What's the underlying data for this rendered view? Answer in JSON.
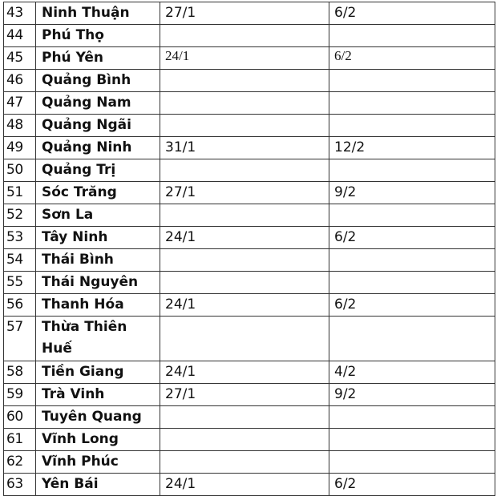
{
  "rows": [
    {
      "no": "43",
      "province": "Ninh Thuận",
      "date1": "27/1",
      "date2": "6/2"
    },
    {
      "no": "44",
      "province": "Phú Thọ",
      "date1": "",
      "date2": ""
    },
    {
      "no": "45",
      "province": "Phú Yên",
      "date1": "24/1",
      "date2": "6/2",
      "serif": true
    },
    {
      "no": "46",
      "province": "Quảng Bình",
      "date1": "",
      "date2": ""
    },
    {
      "no": "47",
      "province": "Quảng Nam",
      "date1": "",
      "date2": ""
    },
    {
      "no": "48",
      "province": "Quảng Ngãi",
      "date1": "",
      "date2": ""
    },
    {
      "no": "49",
      "province": "Quảng Ninh",
      "date1": "31/1",
      "date2": "12/2"
    },
    {
      "no": "50",
      "province": "Quảng Trị",
      "date1": "",
      "date2": ""
    },
    {
      "no": "51",
      "province": "Sóc Trăng",
      "date1": "27/1",
      "date2": "9/2"
    },
    {
      "no": "52",
      "province": "Sơn La",
      "date1": "",
      "date2": ""
    },
    {
      "no": "53",
      "province": "Tây Ninh",
      "date1": "24/1",
      "date2": "6/2"
    },
    {
      "no": "54",
      "province": "Thái Bình",
      "date1": "",
      "date2": ""
    },
    {
      "no": "55",
      "province": "Thái Nguyên",
      "date1": "",
      "date2": ""
    },
    {
      "no": "56",
      "province": "Thanh Hóa",
      "date1": "24/1",
      "date2": "6/2"
    },
    {
      "no": "57",
      "province": "Thừa Thiên Huế",
      "date1": "",
      "date2": "",
      "tall": true
    },
    {
      "no": "58",
      "province": "Tiền Giang",
      "date1": "24/1",
      "date2": "4/2"
    },
    {
      "no": "59",
      "province": "Trà Vinh",
      "date1": "27/1",
      "date2": "9/2"
    },
    {
      "no": "60",
      "province": "Tuyên Quang",
      "date1": "",
      "date2": ""
    },
    {
      "no": "61",
      "province": "Vĩnh Long",
      "date1": "",
      "date2": ""
    },
    {
      "no": "62",
      "province": "Vĩnh Phúc",
      "date1": "",
      "date2": ""
    },
    {
      "no": "63",
      "province": "Yên Bái",
      "date1": "24/1",
      "date2": "6/2"
    }
  ]
}
